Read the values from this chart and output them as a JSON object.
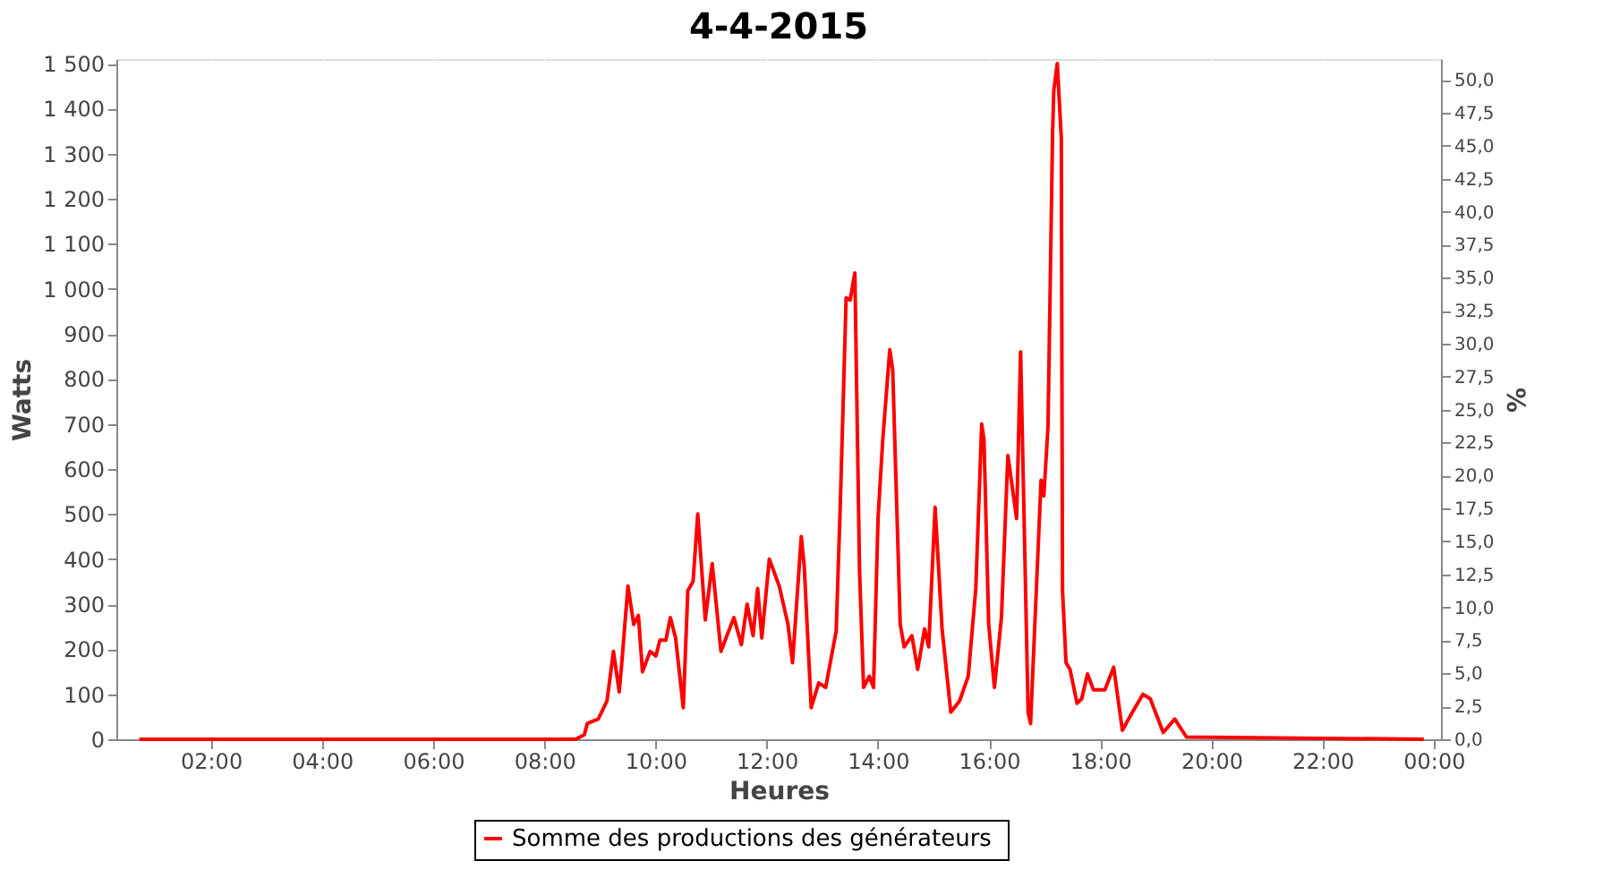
{
  "chart_data": {
    "type": "line",
    "title": "4-4-2015",
    "xlabel": "Heures",
    "ylabel": "Watts",
    "y2label": "%",
    "xlim": [
      0.3,
      24.13
    ],
    "xticks": [
      {
        "value": 2,
        "label": "02:00"
      },
      {
        "value": 4,
        "label": "04:00"
      },
      {
        "value": 6,
        "label": "06:00"
      },
      {
        "value": 8,
        "label": "08:00"
      },
      {
        "value": 10,
        "label": "10:00"
      },
      {
        "value": 12,
        "label": "12:00"
      },
      {
        "value": 14,
        "label": "14:00"
      },
      {
        "value": 16,
        "label": "16:00"
      },
      {
        "value": 18,
        "label": "18:00"
      },
      {
        "value": 20,
        "label": "20:00"
      },
      {
        "value": 22,
        "label": "22:00"
      },
      {
        "value": 24,
        "label": "00:00"
      }
    ],
    "ylim": [
      0,
      1510
    ],
    "yticks": [
      0,
      100,
      200,
      300,
      400,
      500,
      600,
      700,
      800,
      900,
      {
        "value": 1000,
        "label": "1 000"
      },
      {
        "value": 1100,
        "label": "1 100"
      },
      {
        "value": 1200,
        "label": "1 200"
      },
      {
        "value": 1300,
        "label": "1 300"
      },
      {
        "value": 1400,
        "label": "1 400"
      },
      {
        "value": 1500,
        "label": "1 500"
      }
    ],
    "y2lim": [
      0,
      51.57
    ],
    "y2ticks": [
      {
        "value": 0,
        "label": "0,0"
      },
      {
        "value": 2.5,
        "label": "2,5"
      },
      {
        "value": 5,
        "label": "5,0"
      },
      {
        "value": 7.5,
        "label": "7,5"
      },
      {
        "value": 10,
        "label": "10,0"
      },
      {
        "value": 12.5,
        "label": "12,5"
      },
      {
        "value": 15,
        "label": "15,0"
      },
      {
        "value": 17.5,
        "label": "17,5"
      },
      {
        "value": 20,
        "label": "20,0"
      },
      {
        "value": 22.5,
        "label": "22,5"
      },
      {
        "value": 25,
        "label": "25,0"
      },
      {
        "value": 27.5,
        "label": "27,5"
      },
      {
        "value": 30,
        "label": "30,0"
      },
      {
        "value": 32.5,
        "label": "32,5"
      },
      {
        "value": 35,
        "label": "35,0"
      },
      {
        "value": 37.5,
        "label": "37,5"
      },
      {
        "value": 40,
        "label": "40,0"
      },
      {
        "value": 42.5,
        "label": "42,5"
      },
      {
        "value": 45,
        "label": "45,0"
      },
      {
        "value": 47.5,
        "label": "47,5"
      },
      {
        "value": 50,
        "label": "50,0"
      }
    ],
    "grid": true,
    "legend": "bottom",
    "marker": "none",
    "line_style": "solid",
    "series": [
      {
        "name": "Somme des productions des  générateurs",
        "color": "#ff0000",
        "x": [
          0.713,
          8.562,
          8.719,
          8.772,
          8.97,
          9.127,
          9.243,
          9.347,
          9.4,
          9.504,
          9.608,
          9.692,
          9.765,
          9.903,
          10.006,
          10.079,
          10.185,
          10.267,
          10.361,
          10.499,
          10.581,
          10.675,
          10.76,
          10.895,
          11.02,
          11.177,
          11.284,
          11.41,
          11.545,
          11.648,
          11.755,
          11.837,
          11.912,
          12.047,
          12.226,
          12.383,
          12.465,
          12.622,
          12.675,
          12.801,
          12.936,
          13.061,
          13.25,
          13.325,
          13.429,
          13.501,
          13.586,
          13.67,
          13.743,
          13.846,
          13.922,
          14.003,
          14.088,
          14.214,
          14.267,
          14.402,
          14.474,
          14.612,
          14.716,
          14.841,
          14.914,
          15.03,
          15.155,
          15.312,
          15.469,
          15.626,
          15.762,
          15.868,
          15.909,
          15.994,
          16.097,
          16.223,
          16.339,
          16.496,
          16.568,
          16.703,
          16.747,
          16.936,
          16.986,
          17.061,
          17.143,
          17.165,
          17.228,
          17.3,
          17.322,
          17.385,
          17.457,
          17.583,
          17.667,
          17.771,
          17.878,
          18.085,
          18.242,
          18.399,
          18.556,
          18.767,
          18.901,
          19.134,
          19.341,
          19.551,
          23.821
        ],
        "values": [
          0,
          0,
          10,
          35,
          45,
          85,
          195,
          105,
          180,
          340,
          255,
          275,
          150,
          195,
          185,
          220,
          220,
          270,
          225,
          70,
          330,
          350,
          500,
          265,
          390,
          195,
          230,
          270,
          210,
          300,
          230,
          335,
          225,
          400,
          340,
          255,
          170,
          450,
          385,
          70,
          125,
          115,
          240,
          525,
          980,
          975,
          1035,
          375,
          115,
          140,
          115,
          490,
          665,
          865,
          820,
          255,
          205,
          230,
          155,
          245,
          205,
          515,
          245,
          60,
          85,
          140,
          335,
          700,
          665,
          255,
          115,
          270,
          630,
          490,
          860,
          60,
          35,
          575,
          540,
          695,
          1345,
          1440,
          1500,
          1335,
          330,
          170,
          155,
          80,
          90,
          145,
          110,
          110,
          160,
          20,
          55,
          100,
          90,
          15,
          45,
          5,
          0
        ]
      }
    ]
  }
}
